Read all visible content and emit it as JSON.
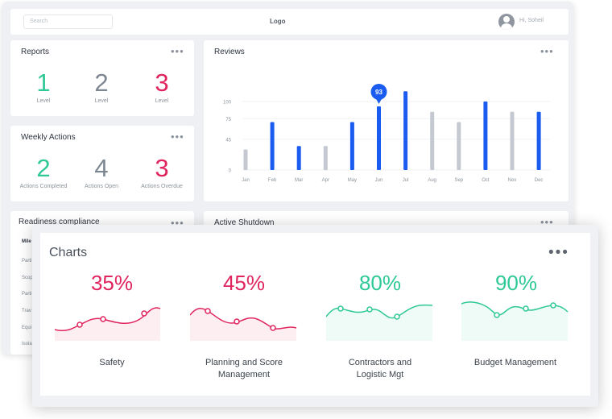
{
  "header": {
    "search_placeholder": "Search",
    "logo": "Logo",
    "user_greeting": "Hi, Soheil"
  },
  "reports": {
    "title": "Reports",
    "items": [
      {
        "value": "1",
        "label": "Level"
      },
      {
        "value": "2",
        "label": "Level"
      },
      {
        "value": "3",
        "label": "Level"
      }
    ]
  },
  "weekly_actions": {
    "title": "Weekly Actions",
    "items": [
      {
        "value": "2",
        "label": "Actions Completed"
      },
      {
        "value": "4",
        "label": "Actions Open"
      },
      {
        "value": "3",
        "label": "Actions Overdue"
      }
    ]
  },
  "readiness": {
    "title": "Readiness compliance",
    "rows": [
      "Mile",
      "Parti",
      "Scop",
      "Parti",
      "Trav",
      "Equi",
      "Isola"
    ]
  },
  "active_shutdown": {
    "title": "Active Shutdown"
  },
  "reviews": {
    "title": "Reviews",
    "highlight_label": "93",
    "colors": {
      "blue": "#1a5cf0",
      "gray": "#c4c9d1"
    }
  },
  "chart_data": {
    "type": "bar",
    "categories": [
      "Jan",
      "Feb",
      "Mar",
      "Apr",
      "May",
      "Jun",
      "Jul",
      "Aug",
      "Sep",
      "Oct",
      "Nov",
      "Dec"
    ],
    "values": [
      30,
      70,
      35,
      35,
      70,
      93,
      115,
      85,
      70,
      100,
      85,
      85
    ],
    "highlight": [
      "gray",
      "blue",
      "blue",
      "gray",
      "blue",
      "blue",
      "blue",
      "gray",
      "gray",
      "blue",
      "gray",
      "blue"
    ],
    "yticks": [
      0,
      45,
      75,
      100
    ],
    "ylim": [
      0,
      130
    ],
    "annotation": {
      "category": "Jun",
      "value": "93"
    }
  },
  "charts": {
    "title": "Charts",
    "items": [
      {
        "percent": "35%",
        "label_line1": "Safety",
        "label_line2": "",
        "color": "#e0245e"
      },
      {
        "percent": "45%",
        "label_line1": "Planning and Score",
        "label_line2": "Management",
        "color": "#e0245e"
      },
      {
        "percent": "80%",
        "label_line1": "Contractors and",
        "label_line2": "Logistic Mgt",
        "color": "#2fc897"
      },
      {
        "percent": "90%",
        "label_line1": "Budget Management",
        "label_line2": "",
        "color": "#2fc897"
      }
    ]
  }
}
